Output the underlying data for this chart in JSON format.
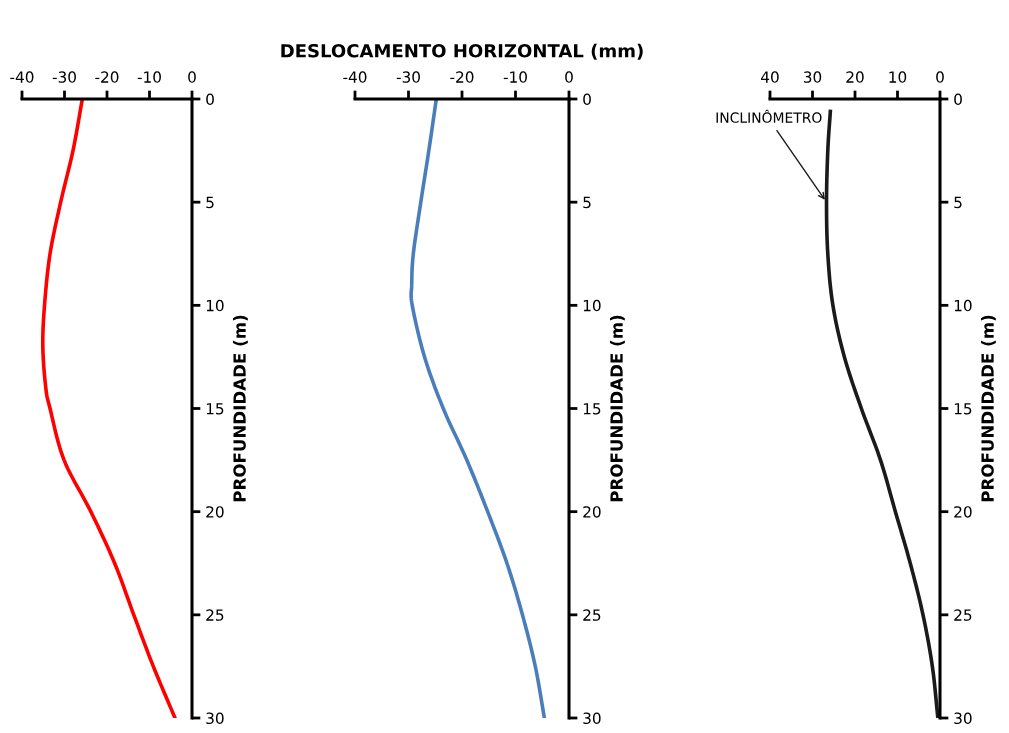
{
  "chart_data": [
    {
      "type": "line",
      "ylabel": "PROFUNDIDADE (m)",
      "xlim": [
        -40,
        0
      ],
      "xticks": [
        -40,
        -30,
        -20,
        -10,
        0
      ],
      "ylim": [
        30,
        0
      ],
      "yticks": [
        0,
        5,
        10,
        15,
        20,
        25,
        30
      ],
      "grid": false,
      "marker": "none",
      "line_style": "solid",
      "series": [
        {
          "color": "#ff0000",
          "x": [
            -25.8,
            -28.0,
            -30.9,
            -33.4,
            -34.7,
            -35.1,
            -34.4,
            -33.4,
            -30.1,
            -23.8,
            -18.2,
            -13.7,
            -9.1,
            -4.0
          ],
          "values": [
            0,
            2.5,
            5,
            7.5,
            10,
            12,
            14,
            15,
            17.5,
            20,
            22.5,
            25,
            27.5,
            30
          ]
        }
      ]
    },
    {
      "type": "line",
      "title": "DESLOCAMENTO HORIZONTAL (mm)",
      "ylabel": "PROFUNDIDADE (m)",
      "xlim": [
        -40,
        0
      ],
      "xticks": [
        -40,
        -30,
        -20,
        -10,
        0
      ],
      "ylim": [
        30,
        0
      ],
      "yticks": [
        0,
        5,
        10,
        15,
        20,
        25,
        30
      ],
      "grid": false,
      "marker": "none",
      "line_style": "solid",
      "series": [
        {
          "color": "#4a7ebb",
          "x": [
            -24.8,
            -26.2,
            -27.7,
            -29.1,
            -29.4,
            -29.3,
            -27.0,
            -23.5,
            -19.1,
            -15.2,
            -11.6,
            -8.7,
            -6.3,
            -4.6
          ],
          "values": [
            0,
            2.5,
            5,
            7.5,
            9,
            10,
            12.5,
            15,
            17.5,
            20,
            22.5,
            25,
            27.5,
            30
          ]
        }
      ]
    },
    {
      "type": "line",
      "ylabel": "PROFUNDIDADE (m)",
      "xlim": [
        40,
        0
      ],
      "xticks": [
        40,
        30,
        20,
        10,
        0
      ],
      "ylim": [
        30,
        0
      ],
      "yticks": [
        0,
        5,
        10,
        15,
        20,
        25,
        30
      ],
      "grid": false,
      "marker": "none",
      "line_style": "solid",
      "annotations": [
        {
          "text": "INCLINÔMETRO",
          "x": 26.7,
          "y": 5
        }
      ],
      "series": [
        {
          "color": "#1a1a1a",
          "x": [
            25.8,
            26.4,
            26.7,
            26.4,
            25.2,
            22.5,
            18.5,
            14.0,
            10.5,
            7.0,
            4.0,
            1.8,
            0.5
          ],
          "values": [
            0.6,
            2.5,
            5,
            7.5,
            10,
            12.5,
            15,
            17.5,
            20,
            22.5,
            25,
            27.5,
            30
          ]
        }
      ]
    }
  ]
}
